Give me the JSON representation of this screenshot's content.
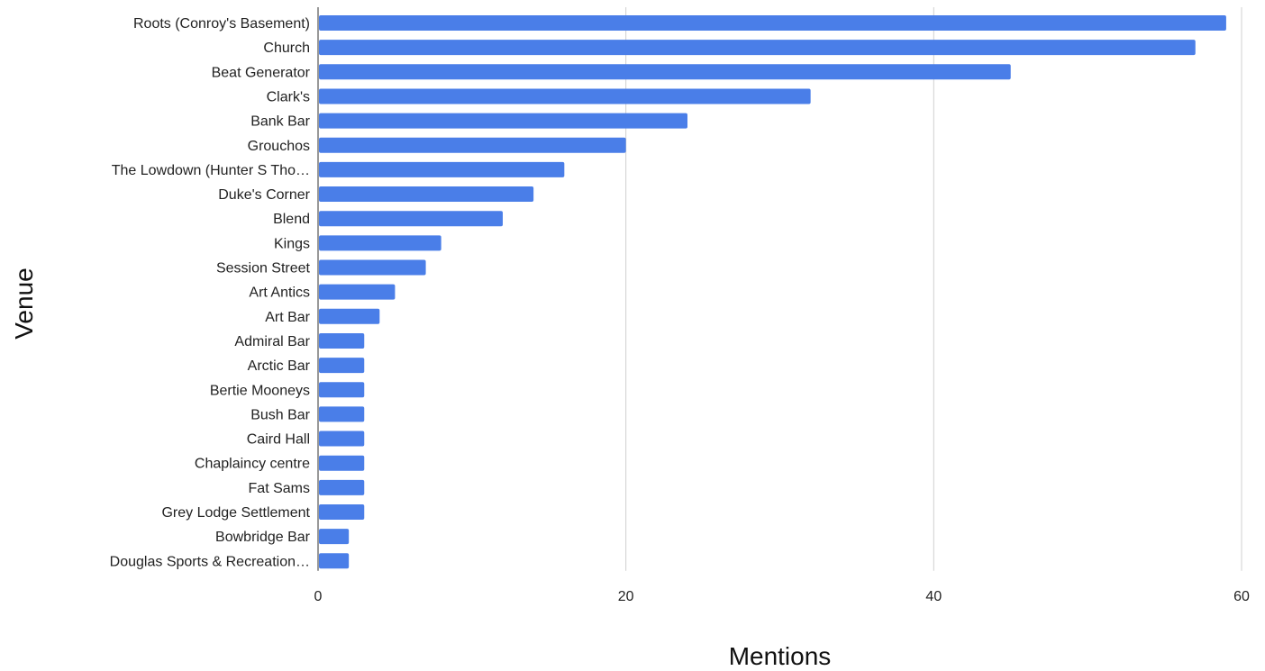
{
  "chart_data": {
    "type": "bar",
    "orientation": "horizontal",
    "title": "",
    "xlabel": "Mentions",
    "ylabel": "Venue",
    "xlim": [
      0,
      60
    ],
    "x_ticks": [
      0,
      20,
      40,
      60
    ],
    "grid": "vertical",
    "legend": "none",
    "bar_color": "#4a7ee8",
    "categories": [
      "Roots (Conroy's Basement)",
      "Church",
      "Beat Generator",
      "Clark's",
      "Bank Bar",
      "Grouchos",
      "The Lowdown (Hunter S Tho…",
      "Duke's Corner",
      "Blend",
      "Kings",
      "Session Street",
      "Art Antics",
      "Art Bar",
      "Admiral Bar",
      "Arctic Bar",
      "Bertie Mooneys",
      "Bush Bar",
      "Caird Hall",
      "Chaplaincy centre",
      "Fat Sams",
      "Grey Lodge Settlement",
      "Bowbridge Bar",
      "Douglas Sports & Recreation…"
    ],
    "values": [
      59,
      57,
      45,
      32,
      24,
      20,
      16,
      14,
      12,
      8,
      7,
      5,
      4,
      3,
      3,
      3,
      3,
      3,
      3,
      3,
      3,
      2,
      2
    ]
  }
}
